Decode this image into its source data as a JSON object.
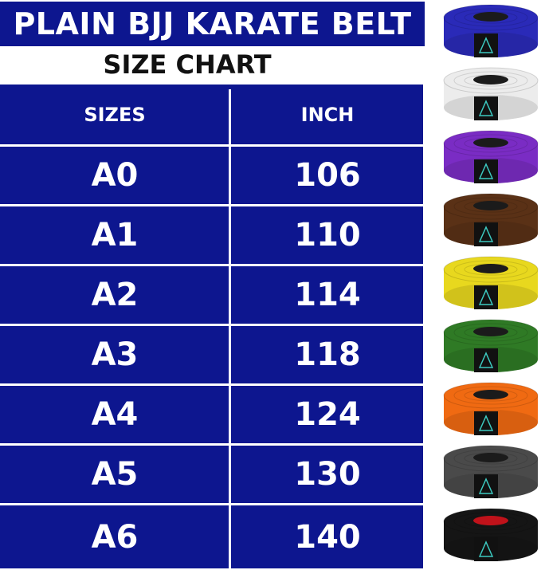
{
  "title": "PLAIN BJJ KARATE BELT",
  "subtitle": "SIZE CHART",
  "table": {
    "headers": [
      "SIZES",
      "INCH"
    ],
    "rows": [
      [
        "A0",
        "106"
      ],
      [
        "A1",
        "110"
      ],
      [
        "A2",
        "114"
      ],
      [
        "A3",
        "118"
      ],
      [
        "A4",
        "124"
      ],
      [
        "A5",
        "130"
      ],
      [
        "A6",
        "140"
      ]
    ]
  },
  "colors": {
    "panel_blue": "#0d168f"
  },
  "belts": [
    {
      "color": "blue",
      "hex": "#2a2ab8"
    },
    {
      "color": "white",
      "hex": "#ececec"
    },
    {
      "color": "purple",
      "hex": "#7a2cc4"
    },
    {
      "color": "brown",
      "hex": "#5a3116"
    },
    {
      "color": "yellow",
      "hex": "#e8d81e"
    },
    {
      "color": "green",
      "hex": "#2f7a25"
    },
    {
      "color": "orange",
      "hex": "#f06a12"
    },
    {
      "color": "gray",
      "hex": "#4a4a4a"
    },
    {
      "color": "black",
      "hex": "#151515",
      "inner": "#c0121a"
    }
  ]
}
